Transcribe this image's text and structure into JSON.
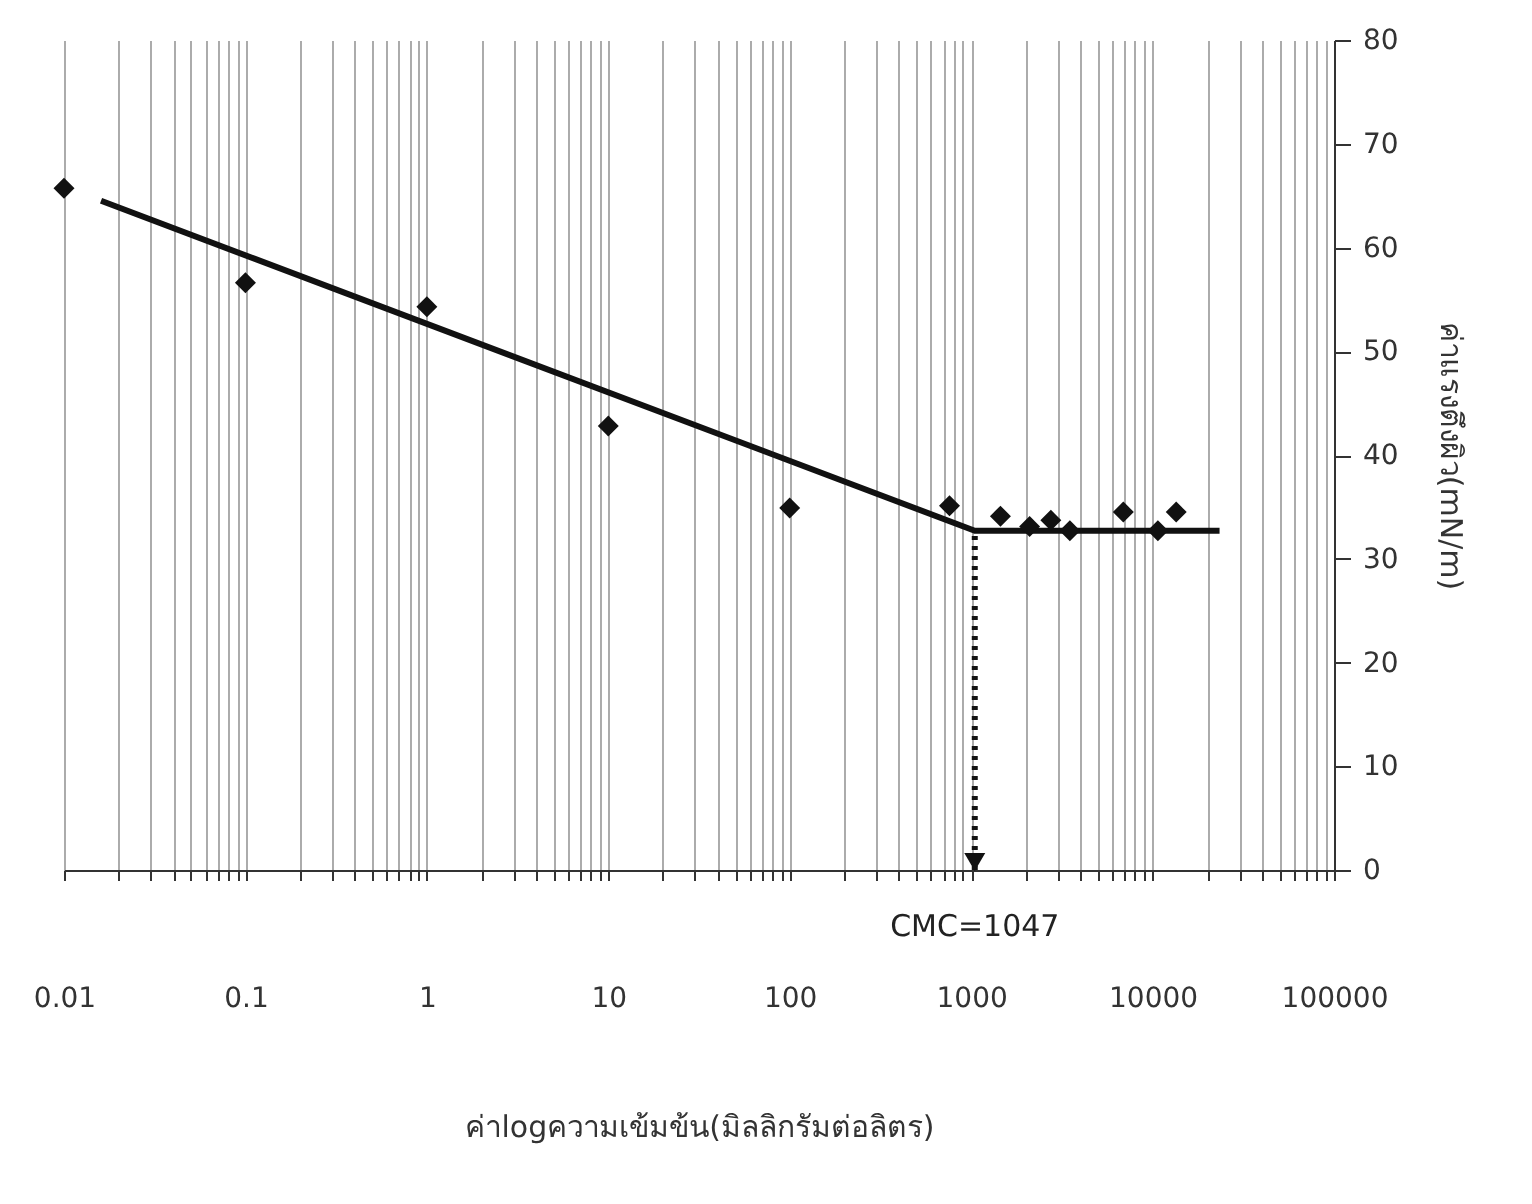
{
  "chart_data": {
    "type": "scatter",
    "xlabel": "ค่าlogความเข้มข้น(มิลลิกรัมต่อลิตร)",
    "ylabel": "ค่าแรงตึงผิว(mN/m)",
    "log": "x",
    "grid": "x",
    "marker": "diamond",
    "xlim": [
      0.01,
      100000
    ],
    "ylim": [
      0,
      80
    ],
    "yticks": [
      0,
      10,
      20,
      30,
      40,
      50,
      60,
      70,
      80
    ],
    "xticks": [
      0.01,
      {
        "value": 0.02,
        "label": null
      },
      {
        "value": 0.03,
        "label": null
      },
      {
        "value": 0.04,
        "label": null
      },
      {
        "value": 0.05,
        "label": null
      },
      {
        "value": 0.06,
        "label": null
      },
      {
        "value": 0.07,
        "label": null
      },
      {
        "value": 0.08,
        "label": null
      },
      {
        "value": 0.09,
        "label": null
      },
      0.1,
      {
        "value": 0.2,
        "label": null
      },
      {
        "value": 0.3,
        "label": null
      },
      {
        "value": 0.4,
        "label": null
      },
      {
        "value": 0.5,
        "label": null
      },
      {
        "value": 0.6,
        "label": null
      },
      {
        "value": 0.7,
        "label": null
      },
      {
        "value": 0.8,
        "label": null
      },
      {
        "value": 0.9,
        "label": null
      },
      1,
      {
        "value": 2,
        "label": null
      },
      {
        "value": 3,
        "label": null
      },
      {
        "value": 4,
        "label": null
      },
      {
        "value": 5,
        "label": null
      },
      {
        "value": 6,
        "label": null
      },
      {
        "value": 7,
        "label": null
      },
      {
        "value": 8,
        "label": null
      },
      {
        "value": 9,
        "label": null
      },
      10,
      {
        "value": 20,
        "label": null
      },
      {
        "value": 30,
        "label": null
      },
      {
        "value": 40,
        "label": null
      },
      {
        "value": 50,
        "label": null
      },
      {
        "value": 60,
        "label": null
      },
      {
        "value": 70,
        "label": null
      },
      {
        "value": 80,
        "label": null
      },
      {
        "value": 90,
        "label": null
      },
      100,
      {
        "value": 200,
        "label": null
      },
      {
        "value": 300,
        "label": null
      },
      {
        "value": 400,
        "label": null
      },
      {
        "value": 500,
        "label": null
      },
      {
        "value": 600,
        "label": null
      },
      {
        "value": 700,
        "label": null
      },
      {
        "value": 800,
        "label": null
      },
      {
        "value": 900,
        "label": null
      },
      1000,
      {
        "value": 2000,
        "label": null
      },
      {
        "value": 3000,
        "label": null
      },
      {
        "value": 4000,
        "label": null
      },
      {
        "value": 5000,
        "label": null
      },
      {
        "value": 6000,
        "label": null
      },
      {
        "value": 7000,
        "label": null
      },
      {
        "value": 8000,
        "label": null
      },
      {
        "value": 9000,
        "label": null
      },
      10000,
      {
        "value": 20000,
        "label": null
      },
      {
        "value": 30000,
        "label": null
      },
      {
        "value": 40000,
        "label": null
      },
      {
        "value": 50000,
        "label": null
      },
      {
        "value": 60000,
        "label": null
      },
      {
        "value": 70000,
        "label": null
      },
      {
        "value": 80000,
        "label": null
      },
      {
        "value": 90000,
        "label": null
      },
      100000
    ],
    "series": [
      {
        "color": "#111111",
        "x": [
          0.01,
          0.1,
          1,
          10,
          100,
          760,
          1450,
          2100,
          2750,
          3500,
          6900,
          10700,
          13500
        ],
        "values": [
          65.7,
          56.6,
          54.3,
          42.8,
          34.9,
          35.1,
          34.1,
          33.1,
          33.7,
          32.7,
          34.5,
          32.7,
          34.5
        ]
      },
      {
        "type": "line",
        "color": "#111111",
        "line_style": "solid",
        "marker": "none",
        "x": [
          0.016,
          1047,
          23400
        ],
        "values": [
          64.5,
          32.7,
          32.7
        ]
      }
    ],
    "ref_lines": [
      {
        "axis": "x",
        "value": 1047,
        "label": "CMC=1047",
        "line_style": "dotted",
        "color": "#111111"
      }
    ]
  }
}
